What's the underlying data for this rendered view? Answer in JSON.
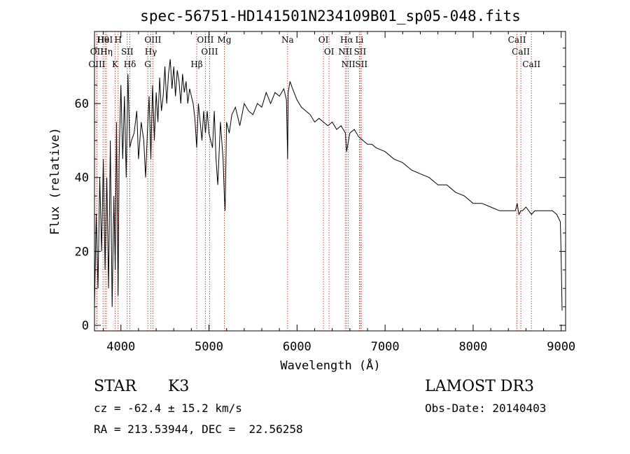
{
  "chart_data": {
    "type": "line",
    "title": "spec-56751-HD141501N234109B01_sp05-048.fits",
    "xlabel": "Wavelength (Å)",
    "ylabel": "Flux (relative)",
    "xlim": [
      3700,
      9050
    ],
    "ylim": [
      -1.5,
      79.5
    ],
    "x_ticks": [
      4000,
      5000,
      6000,
      7000,
      8000,
      9000
    ],
    "y_ticks": [
      0,
      20,
      40,
      60
    ],
    "grid": false,
    "series": [
      {
        "name": "spectrum",
        "x": [
          3700,
          3720,
          3740,
          3760,
          3780,
          3800,
          3820,
          3840,
          3860,
          3880,
          3900,
          3920,
          3935,
          3950,
          3968,
          3980,
          4000,
          4020,
          4040,
          4060,
          4080,
          4101,
          4120,
          4150,
          4180,
          4200,
          4230,
          4260,
          4280,
          4300,
          4320,
          4340,
          4360,
          4380,
          4400,
          4420,
          4440,
          4460,
          4480,
          4500,
          4520,
          4540,
          4560,
          4580,
          4600,
          4620,
          4640,
          4660,
          4680,
          4700,
          4720,
          4740,
          4760,
          4780,
          4800,
          4820,
          4840,
          4861,
          4880,
          4900,
          4920,
          4940,
          4960,
          4980,
          5000,
          5020,
          5040,
          5060,
          5080,
          5100,
          5130,
          5160,
          5175,
          5183,
          5200,
          5230,
          5260,
          5300,
          5350,
          5400,
          5450,
          5500,
          5550,
          5600,
          5650,
          5700,
          5750,
          5800,
          5850,
          5880,
          5893,
          5900,
          5920,
          5950,
          6000,
          6050,
          6100,
          6150,
          6200,
          6250,
          6300,
          6350,
          6400,
          6450,
          6500,
          6550,
          6563,
          6600,
          6650,
          6700,
          6750,
          6800,
          6850,
          6900,
          7000,
          7100,
          7200,
          7300,
          7400,
          7500,
          7600,
          7700,
          7800,
          7900,
          8000,
          8100,
          8200,
          8300,
          8400,
          8480,
          8500,
          8520,
          8542,
          8560,
          8600,
          8662,
          8700,
          8800,
          8900,
          8950,
          8990,
          9000,
          9010
        ],
        "values": [
          5,
          30,
          10,
          40,
          20,
          45,
          15,
          40,
          10,
          50,
          5,
          35,
          15,
          55,
          8,
          45,
          65,
          45,
          62,
          40,
          68,
          48,
          50,
          52,
          58,
          45,
          55,
          50,
          40,
          52,
          62,
          45,
          65,
          50,
          63,
          55,
          67,
          58,
          62,
          70,
          60,
          68,
          72,
          64,
          70,
          62,
          69,
          66,
          60,
          68,
          63,
          66,
          60,
          64,
          62,
          60,
          56,
          48,
          60,
          55,
          50,
          58,
          52,
          58,
          52,
          50,
          48,
          58,
          45,
          38,
          55,
          45,
          35,
          31,
          55,
          52,
          57,
          59,
          54,
          60,
          58,
          57,
          60,
          59,
          63,
          60,
          63,
          62,
          64,
          61,
          45,
          63,
          66,
          64,
          61,
          59,
          58,
          57,
          55,
          56,
          55,
          54,
          55,
          53,
          54,
          52,
          47,
          52,
          53,
          51,
          50,
          49,
          49,
          48,
          47,
          45,
          44,
          42,
          41,
          40,
          38,
          38,
          36,
          35,
          33,
          33,
          32,
          31,
          31,
          31,
          33,
          30,
          31,
          31,
          32,
          30,
          31,
          31,
          31,
          30,
          28,
          18,
          4
        ]
      }
    ],
    "line_markers": [
      {
        "label": "Hθ",
        "x": 3797
      },
      {
        "label": "OII",
        "x": 3727
      },
      {
        "label": "OIII",
        "x": 3727
      },
      {
        "label": "HeI",
        "x": 3820
      },
      {
        "label": "Hη",
        "x": 3835
      },
      {
        "label": "K",
        "x": 3934
      },
      {
        "label": "H",
        "x": 3968
      },
      {
        "label": "SII",
        "x": 4072
      },
      {
        "label": "Hδ",
        "x": 4102
      },
      {
        "label": "OIII",
        "x": 4363
      },
      {
        "label": "Hγ",
        "x": 4340
      },
      {
        "label": "G",
        "x": 4305
      },
      {
        "label": "OIII",
        "x": 4959
      },
      {
        "label": "OIII",
        "x": 5007
      },
      {
        "label": "Hβ",
        "x": 4861
      },
      {
        "label": "Mg",
        "x": 5175
      },
      {
        "label": "Na",
        "x": 5893
      },
      {
        "label": "OI",
        "x": 6300
      },
      {
        "label": "OI",
        "x": 6364
      },
      {
        "label": "Hα",
        "x": 6563
      },
      {
        "label": "NII",
        "x": 6548
      },
      {
        "label": "NII",
        "x": 6583
      },
      {
        "label": "SII",
        "x": 6716
      },
      {
        "label": "SII",
        "x": 6731
      },
      {
        "label": "Li",
        "x": 6708
      },
      {
        "label": "CaII",
        "x": 8498
      },
      {
        "label": "CaII",
        "x": 8542
      },
      {
        "label": "CaII",
        "x": 8662
      }
    ]
  },
  "info": {
    "object_class": "STAR",
    "subclass": "K3",
    "survey": "LAMOST DR3",
    "redshift_text": "cz = -62.4 ± 15.2 km/s",
    "obs_date": "Obs-Date: 20140403",
    "coords": "RA = 213.53944, DEC =  22.56258"
  }
}
